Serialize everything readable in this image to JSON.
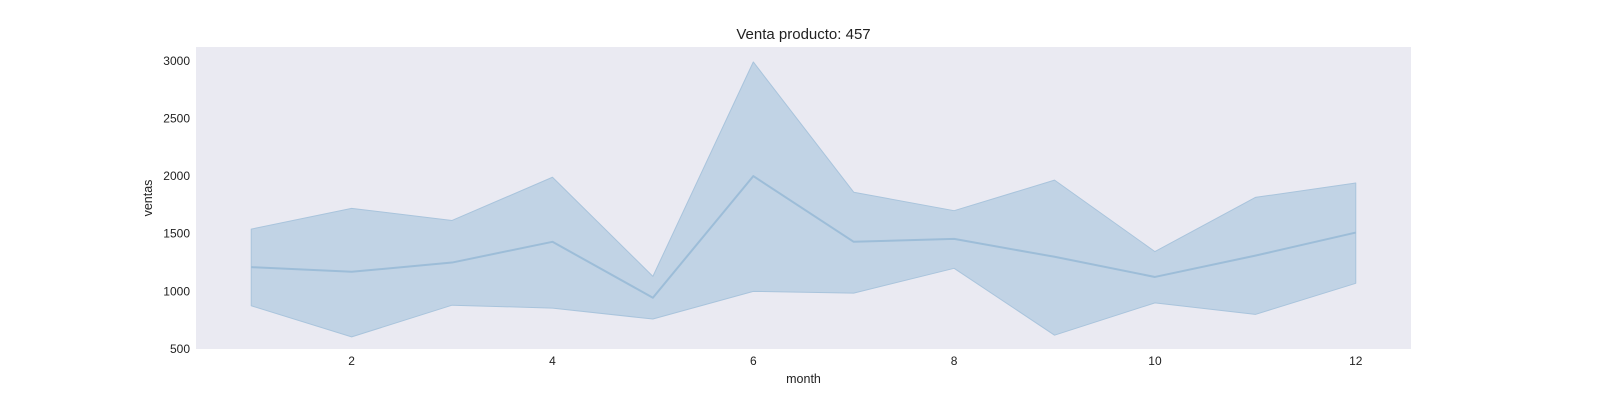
{
  "chart_data": {
    "type": "line",
    "title": "Venta producto: 457",
    "xlabel": "month",
    "ylabel": "ventas",
    "xlim": [
      0.45,
      12.55
    ],
    "ylim": [
      500,
      3120
    ],
    "x_ticks": [
      2,
      4,
      6,
      8,
      10,
      12
    ],
    "y_ticks": [
      500,
      1000,
      1500,
      2000,
      2500,
      3000
    ],
    "grid": false,
    "series": [
      {
        "x": [
          1,
          2,
          3,
          4,
          5,
          6,
          7,
          8,
          9,
          10,
          11,
          12
        ],
        "mean": [
          1210,
          1170,
          1250,
          1430,
          945,
          2000,
          1430,
          1455,
          1300,
          1125,
          1310,
          1510
        ],
        "upper": [
          1540,
          1720,
          1615,
          1990,
          1130,
          2990,
          1860,
          1700,
          1965,
          1345,
          1815,
          1940
        ],
        "lower": [
          875,
          605,
          880,
          855,
          760,
          1000,
          985,
          1200,
          620,
          900,
          800,
          1070
        ]
      }
    ],
    "colors": {
      "plot_background": "#eaeaf2",
      "line": "#9dbdd8",
      "band_fill": "#c1d3e5",
      "band_edge": "#a9c4dc"
    }
  }
}
